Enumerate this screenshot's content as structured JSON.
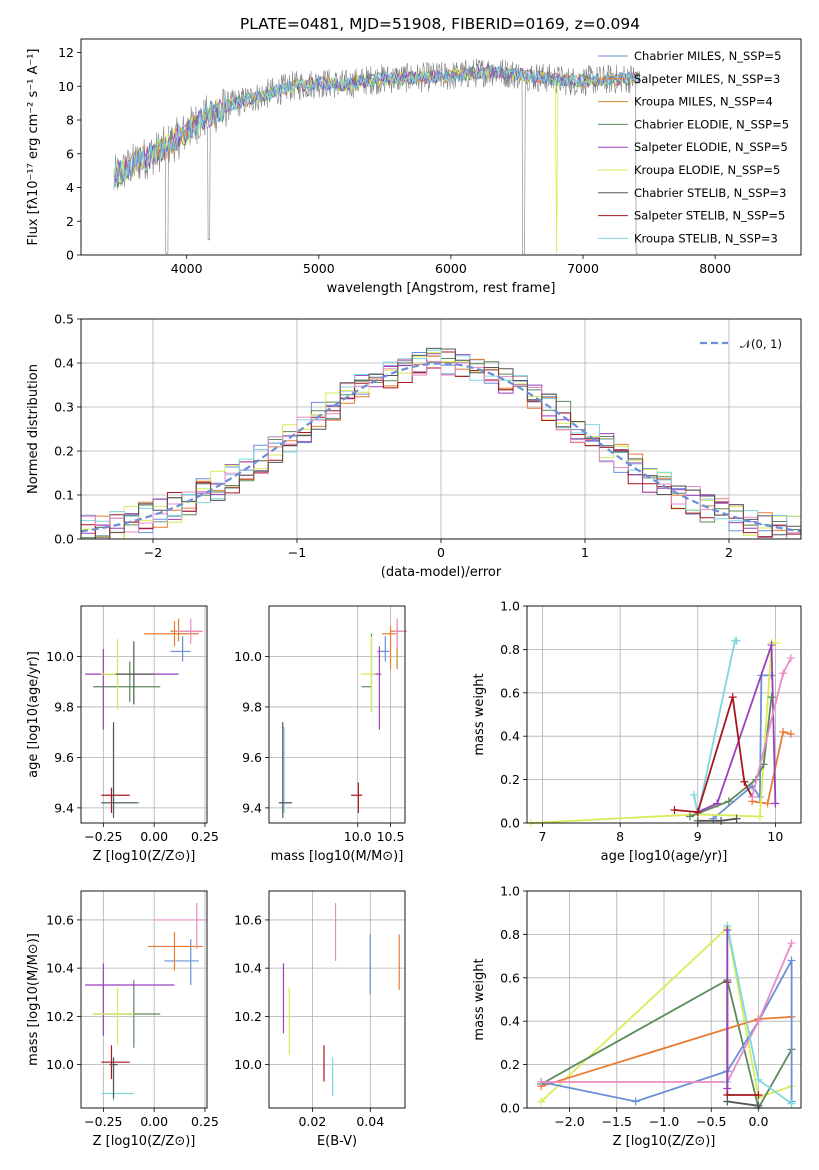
{
  "title": "PLATE=0481, MJD=51908, FIBERID=0169, z=0.094",
  "colors": {
    "Chabrier MILES": "#6b8fd6",
    "Salpeter MILES": "#e87d35",
    "Kroupa MILES": "#c98a2b",
    "Chabrier ELODIE": "#5c8a5c",
    "Salpeter ELODIE": "#9b3fbf",
    "Kroupa ELODIE": "#d9ec57",
    "Chabrier STELIB": "#555555",
    "Salpeter STELIB": "#a8171d",
    "Kroupa STELIB": "#7fd6df",
    "extra pink": "#e88cc4",
    "data": "#808080"
  },
  "chart_data": [
    {
      "id": "spectrum",
      "type": "line",
      "xlabel": "wavelength [Angstrom, rest frame]",
      "ylabel": "Flux [fλ10⁻¹⁷ erg cm⁻² s⁻¹ A⁻¹]",
      "xlim": [
        3200,
        8650
      ],
      "ylim": [
        0,
        12.8
      ],
      "xticks": [
        4000,
        5000,
        6000,
        7000,
        8000
      ],
      "yticks": [
        0,
        2,
        4,
        6,
        8,
        10,
        12
      ],
      "legend_position": "right",
      "legend": [
        "Chabrier MILES, N_SSP=5",
        "Salpeter MILES, N_SSP=3",
        "Kroupa MILES, N_SSP=4",
        "Chabrier ELODIE, N_SSP=5",
        "Salpeter ELODIE, N_SSP=5",
        "Kroupa ELODIE, N_SSP=5",
        "Chabrier STELIB, N_SSP=3",
        "Salpeter STELIB, N_SSP=5",
        "Kroupa STELIB, N_SSP=3"
      ],
      "continuum": [
        [
          3450,
          4.6
        ],
        [
          3600,
          5.4
        ],
        [
          3800,
          6.2
        ],
        [
          3950,
          7.0
        ],
        [
          4100,
          8.0
        ],
        [
          4300,
          8.8
        ],
        [
          4500,
          9.3
        ],
        [
          4800,
          10.0
        ],
        [
          5000,
          10.2
        ],
        [
          5200,
          10.1
        ],
        [
          5400,
          10.4
        ],
        [
          5700,
          10.5
        ],
        [
          6000,
          10.6
        ],
        [
          6300,
          10.9
        ],
        [
          6600,
          10.6
        ],
        [
          6900,
          10.3
        ],
        [
          7200,
          10.4
        ],
        [
          7420,
          10.5
        ]
      ],
      "model_range": [
        3450,
        7430
      ],
      "data_range": [
        3450,
        7420
      ]
    },
    {
      "id": "residuals",
      "type": "area",
      "xlabel": "(data-model)/error",
      "ylabel": "Normed distribution",
      "xlim": [
        -2.5,
        2.5
      ],
      "ylim": [
        0,
        0.5
      ],
      "xticks": [
        -2,
        -1,
        0,
        1,
        2
      ],
      "yticks": [
        0.0,
        0.1,
        0.2,
        0.3,
        0.4,
        0.5
      ],
      "legend": [
        "𝒩(0, 1)"
      ],
      "legend_position": "top-right",
      "bin_width": 0.1
    },
    {
      "id": "age_vs_Z",
      "type": "scatter",
      "xlabel": "Z [log10(Z/Z⊙)]",
      "ylabel": "age  [log10(age/yr)]",
      "xlim": [
        -0.36,
        0.26
      ],
      "ylim": [
        9.34,
        10.2
      ],
      "xticks": [
        -0.25,
        0.0,
        0.25
      ],
      "yticks": [
        9.4,
        9.6,
        9.8,
        10.0
      ],
      "points": [
        {
          "c": "Chabrier MILES",
          "x": 0.14,
          "y": 10.02,
          "ex": [
            0.08,
            0.18
          ],
          "ey": [
            9.98,
            10.08
          ]
        },
        {
          "c": "Salpeter MILES",
          "x": 0.1,
          "y": 10.09,
          "ex": [
            -0.05,
            0.22
          ],
          "ey": [
            10.04,
            10.14
          ]
        },
        {
          "c": "Kroupa MILES",
          "x": 0.12,
          "y": 10.1,
          "ex": [
            0.08,
            0.23
          ],
          "ey": [
            10.06,
            10.15
          ]
        },
        {
          "c": "Chabrier ELODIE",
          "x": -0.12,
          "y": 9.88,
          "ex": [
            -0.3,
            0.03
          ],
          "ey": [
            9.82,
            9.98
          ]
        },
        {
          "c": "Salpeter ELODIE",
          "x": -0.25,
          "y": 9.93,
          "ex": [
            -0.34,
            0.12
          ],
          "ey": [
            9.71,
            10.03
          ]
        },
        {
          "c": "Kroupa ELODIE",
          "x": -0.18,
          "y": 9.93,
          "ex": [
            -0.26,
            -0.1
          ],
          "ey": [
            9.79,
            10.07
          ]
        },
        {
          "c": "Chabrier STELIB",
          "x": -0.1,
          "y": 9.93,
          "ex": [
            -0.19,
            0.0
          ],
          "ey": [
            9.81,
            10.06
          ]
        },
        {
          "c": "Salpeter STELIB",
          "x": -0.21,
          "y": 9.45,
          "ex": [
            -0.26,
            -0.12
          ],
          "ey": [
            9.38,
            9.48
          ]
        },
        {
          "c": "Kroupa STELIB",
          "x": -0.2,
          "y": 9.42,
          "ex": [
            -0.26,
            -0.07
          ],
          "ey": [
            9.38,
            9.72
          ]
        },
        {
          "c": "Chabrier STELIB",
          "x": -0.2,
          "y": 9.42,
          "ex": [
            -0.26,
            -0.08
          ],
          "ey": [
            9.36,
            9.74
          ]
        },
        {
          "c": "extra pink",
          "x": 0.18,
          "y": 10.1,
          "ex": [
            0.1,
            0.24
          ],
          "ey": [
            10.05,
            10.15
          ]
        }
      ]
    },
    {
      "id": "age_vs_mass",
      "type": "scatter",
      "xlabel": "mass [log10(M/M⊙)]",
      "ylabel": "",
      "xlim": [
        8.65,
        10.72
      ],
      "ylim": [
        9.34,
        10.2
      ],
      "xticks": [
        10.0,
        10.5
      ],
      "yticks": [
        9.4,
        9.6,
        9.8,
        10.0
      ],
      "points": [
        {
          "c": "Chabrier MILES",
          "x": 10.42,
          "y": 10.02,
          "ex": [
            10.3,
            10.48
          ],
          "ey": [
            9.98,
            10.08
          ]
        },
        {
          "c": "Salpeter MILES",
          "x": 10.5,
          "y": 10.09,
          "ex": [
            10.37,
            10.58
          ],
          "ey": [
            9.95,
            10.12
          ]
        },
        {
          "c": "Kroupa MILES",
          "x": 10.6,
          "y": 10.1,
          "ex": [
            10.5,
            10.68
          ],
          "ey": [
            9.95,
            10.14
          ]
        },
        {
          "c": "Chabrier ELODIE",
          "x": 10.21,
          "y": 9.88,
          "ex": [
            10.06,
            10.22
          ],
          "ey": [
            9.78,
            10.09
          ]
        },
        {
          "c": "Salpeter ELODIE",
          "x": 10.33,
          "y": 9.93,
          "ex": [
            10.2,
            10.36
          ],
          "ey": [
            9.71,
            10.04
          ]
        },
        {
          "c": "Kroupa ELODIE",
          "x": 10.21,
          "y": 9.93,
          "ex": [
            10.05,
            10.27
          ],
          "ey": [
            9.78,
            10.08
          ]
        },
        {
          "c": "Salpeter STELIB",
          "x": 10.01,
          "y": 9.45,
          "ex": [
            9.9,
            10.07
          ],
          "ey": [
            9.38,
            9.5
          ]
        },
        {
          "c": "Kroupa STELIB",
          "x": 8.88,
          "y": 9.42,
          "ex": [
            8.8,
            9.0
          ],
          "ey": [
            9.38,
            9.72
          ]
        },
        {
          "c": "Chabrier STELIB",
          "x": 8.86,
          "y": 9.42,
          "ex": [
            8.8,
            9.0
          ],
          "ey": [
            9.36,
            9.74
          ]
        },
        {
          "c": "extra pink",
          "x": 10.6,
          "y": 10.1,
          "ex": [
            10.55,
            10.75
          ],
          "ey": [
            10.03,
            10.15
          ]
        }
      ]
    },
    {
      "id": "weight_vs_age",
      "type": "line",
      "xlabel": "age  [log10(age/yr)]",
      "ylabel": "mass weight",
      "xlim": [
        6.8,
        10.33
      ],
      "ylim": [
        0,
        1
      ],
      "xticks": [
        7,
        8,
        9,
        10
      ],
      "yticks": [
        0.0,
        0.2,
        0.4,
        0.6,
        0.8,
        1.0
      ],
      "series": [
        {
          "c": "Kroupa STELIB",
          "x": [
            8.95,
            9.0,
            9.48,
            9.5
          ],
          "y": [
            0.13,
            0.04,
            0.84,
            0.84
          ]
        },
        {
          "c": "Chabrier MILES",
          "x": [
            9.2,
            9.7,
            9.8,
            9.82,
            9.95
          ],
          "y": [
            0.02,
            0.17,
            0.12,
            0.68,
            0.68
          ]
        },
        {
          "c": "Salpeter MILES",
          "x": [
            9.7,
            9.9,
            10.1,
            10.2
          ],
          "y": [
            0.1,
            0.09,
            0.42,
            0.41
          ]
        },
        {
          "c": "Kroupa ELODIE",
          "x": [
            6.85,
            9.0,
            9.8,
            9.95,
            10.0
          ],
          "y": [
            0.0,
            0.04,
            0.03,
            0.83,
            0.83
          ]
        },
        {
          "c": "Salpeter ELODIE",
          "x": [
            9.0,
            9.25,
            9.95,
            10.0
          ],
          "y": [
            0.05,
            0.09,
            0.82,
            0.09
          ]
        },
        {
          "c": "Chabrier ELODIE",
          "x": [
            8.9,
            9.4,
            9.75,
            9.85,
            9.95
          ],
          "y": [
            0.03,
            0.1,
            0.2,
            0.27,
            0.58
          ]
        },
        {
          "c": "Salpeter STELIB",
          "x": [
            8.7,
            9.0,
            9.45,
            9.6,
            9.7
          ],
          "y": [
            0.06,
            0.05,
            0.58,
            0.19,
            0.12
          ]
        },
        {
          "c": "Chabrier STELIB",
          "x": [
            9.0,
            9.3,
            9.5
          ],
          "y": [
            0.01,
            0.01,
            0.02
          ]
        },
        {
          "c": "extra pink",
          "x": [
            9.7,
            10.1,
            10.2
          ],
          "y": [
            0.12,
            0.69,
            0.76
          ]
        }
      ]
    },
    {
      "id": "mass_vs_Z",
      "type": "scatter",
      "xlabel": "Z [log10(Z/Z⊙)]",
      "ylabel": "mass [log10(M/M⊙)]",
      "xlim": [
        -0.36,
        0.26
      ],
      "ylim": [
        9.82,
        10.72
      ],
      "xticks": [
        -0.25,
        0.0,
        0.25
      ],
      "yticks": [
        10.0,
        10.2,
        10.4,
        10.6
      ],
      "points": [
        {
          "c": "Chabrier MILES",
          "x": 0.18,
          "y": 10.43,
          "ex": [
            0.05,
            0.22
          ],
          "ey": [
            10.33,
            10.52
          ]
        },
        {
          "c": "Salpeter MILES",
          "x": 0.1,
          "y": 10.49,
          "ex": [
            -0.03,
            0.24
          ],
          "ey": [
            10.39,
            10.55
          ]
        },
        {
          "c": "extra pink",
          "x": 0.21,
          "y": 10.6,
          "ex": [
            0.0,
            0.25
          ],
          "ey": [
            10.48,
            10.67
          ]
        },
        {
          "c": "Chabrier ELODIE",
          "x": -0.1,
          "y": 10.21,
          "ex": [
            -0.3,
            0.03
          ],
          "ey": [
            10.07,
            10.35
          ]
        },
        {
          "c": "Salpeter ELODIE",
          "x": -0.25,
          "y": 10.33,
          "ex": [
            -0.34,
            0.1
          ],
          "ey": [
            10.12,
            10.42
          ]
        },
        {
          "c": "Kroupa ELODIE",
          "x": -0.18,
          "y": 10.21,
          "ex": [
            -0.3,
            -0.1
          ],
          "ey": [
            10.08,
            10.32
          ]
        },
        {
          "c": "Salpeter STELIB",
          "x": -0.21,
          "y": 10.01,
          "ex": [
            -0.26,
            -0.12
          ],
          "ey": [
            9.94,
            10.08
          ]
        },
        {
          "c": "Kroupa STELIB",
          "x": -0.2,
          "y": 9.88,
          "ex": [
            -0.26,
            -0.1
          ],
          "ey": [
            9.85,
            10.03
          ]
        },
        {
          "c": "Chabrier STELIB",
          "x": -0.2,
          "y": 10.0,
          "ex": [
            -0.22,
            -0.18
          ],
          "ey": [
            9.86,
            10.03
          ]
        }
      ]
    },
    {
      "id": "mass_vs_ebv",
      "type": "scatter",
      "xlabel": "E(B-V)",
      "ylabel": "",
      "xlim": [
        0.005,
        0.052
      ],
      "ylim": [
        9.82,
        10.72
      ],
      "xticks": [
        0.02,
        0.04
      ],
      "yticks": [
        10.0,
        10.2,
        10.4,
        10.6
      ],
      "points": [
        {
          "c": "Salpeter ELODIE",
          "x": 0.01,
          "y": 10.33,
          "ey": [
            10.13,
            10.42
          ]
        },
        {
          "c": "Kroupa ELODIE",
          "x": 0.012,
          "y": 10.21,
          "ey": [
            10.04,
            10.32
          ]
        },
        {
          "c": "Salpeter STELIB",
          "x": 0.024,
          "y": 10.01,
          "ey": [
            9.93,
            10.08
          ]
        },
        {
          "c": "Kroupa STELIB",
          "x": 0.027,
          "y": 9.94,
          "ey": [
            9.87,
            10.03
          ]
        },
        {
          "c": "extra pink",
          "x": 0.028,
          "y": 10.6,
          "ey": [
            10.43,
            10.67
          ]
        },
        {
          "c": "Chabrier MILES",
          "x": 0.04,
          "y": 10.43,
          "ey": [
            10.29,
            10.54
          ]
        },
        {
          "c": "Salpeter MILES",
          "x": 0.05,
          "y": 10.49,
          "ey": [
            10.31,
            10.54
          ]
        }
      ]
    },
    {
      "id": "weight_vs_Z",
      "type": "line",
      "xlabel": "Z [log10(Z/Z⊙)]",
      "ylabel": "mass weight",
      "xlim": [
        -2.45,
        0.45
      ],
      "ylim": [
        0,
        1
      ],
      "xticks": [
        -2.0,
        -1.5,
        -1.0,
        -0.5,
        0.0
      ],
      "yticks": [
        0.0,
        0.2,
        0.4,
        0.6,
        0.8,
        1.0
      ],
      "series": [
        {
          "c": "Kroupa ELODIE",
          "x": [
            -2.3,
            -0.33,
            0.0,
            0.35
          ],
          "y": [
            0.03,
            0.83,
            0.05,
            0.1
          ]
        },
        {
          "c": "Chabrier ELODIE",
          "x": [
            -2.3,
            -0.33,
            0.0,
            0.35
          ],
          "y": [
            0.11,
            0.59,
            0.0,
            0.27
          ]
        },
        {
          "c": "Salpeter MILES",
          "x": [
            -2.3,
            0.0,
            0.35
          ],
          "y": [
            0.1,
            0.41,
            0.42
          ]
        },
        {
          "c": "Chabrier MILES",
          "x": [
            -2.3,
            -1.3,
            -0.33,
            0.0,
            0.35,
            0.35
          ],
          "y": [
            0.12,
            0.03,
            0.17,
            0.4,
            0.68,
            0.03
          ]
        },
        {
          "c": "extra pink",
          "x": [
            -2.3,
            -0.33,
            0.0,
            0.35
          ],
          "y": [
            0.12,
            0.12,
            0.4,
            0.76
          ]
        },
        {
          "c": "Kroupa STELIB",
          "x": [
            -0.33,
            -0.33,
            0.0,
            0.35
          ],
          "y": [
            0.12,
            0.84,
            0.13,
            0.02
          ]
        },
        {
          "c": "Salpeter STELIB",
          "x": [
            -0.33,
            -0.33,
            0.0
          ],
          "y": [
            0.58,
            0.06,
            0.06
          ]
        },
        {
          "c": "Salpeter ELODIE",
          "x": [
            -0.33,
            -0.33
          ],
          "y": [
            0.82,
            0.09
          ]
        },
        {
          "c": "Chabrier STELIB",
          "x": [
            -0.33,
            0.0
          ],
          "y": [
            0.03,
            0.01
          ]
        }
      ]
    }
  ]
}
